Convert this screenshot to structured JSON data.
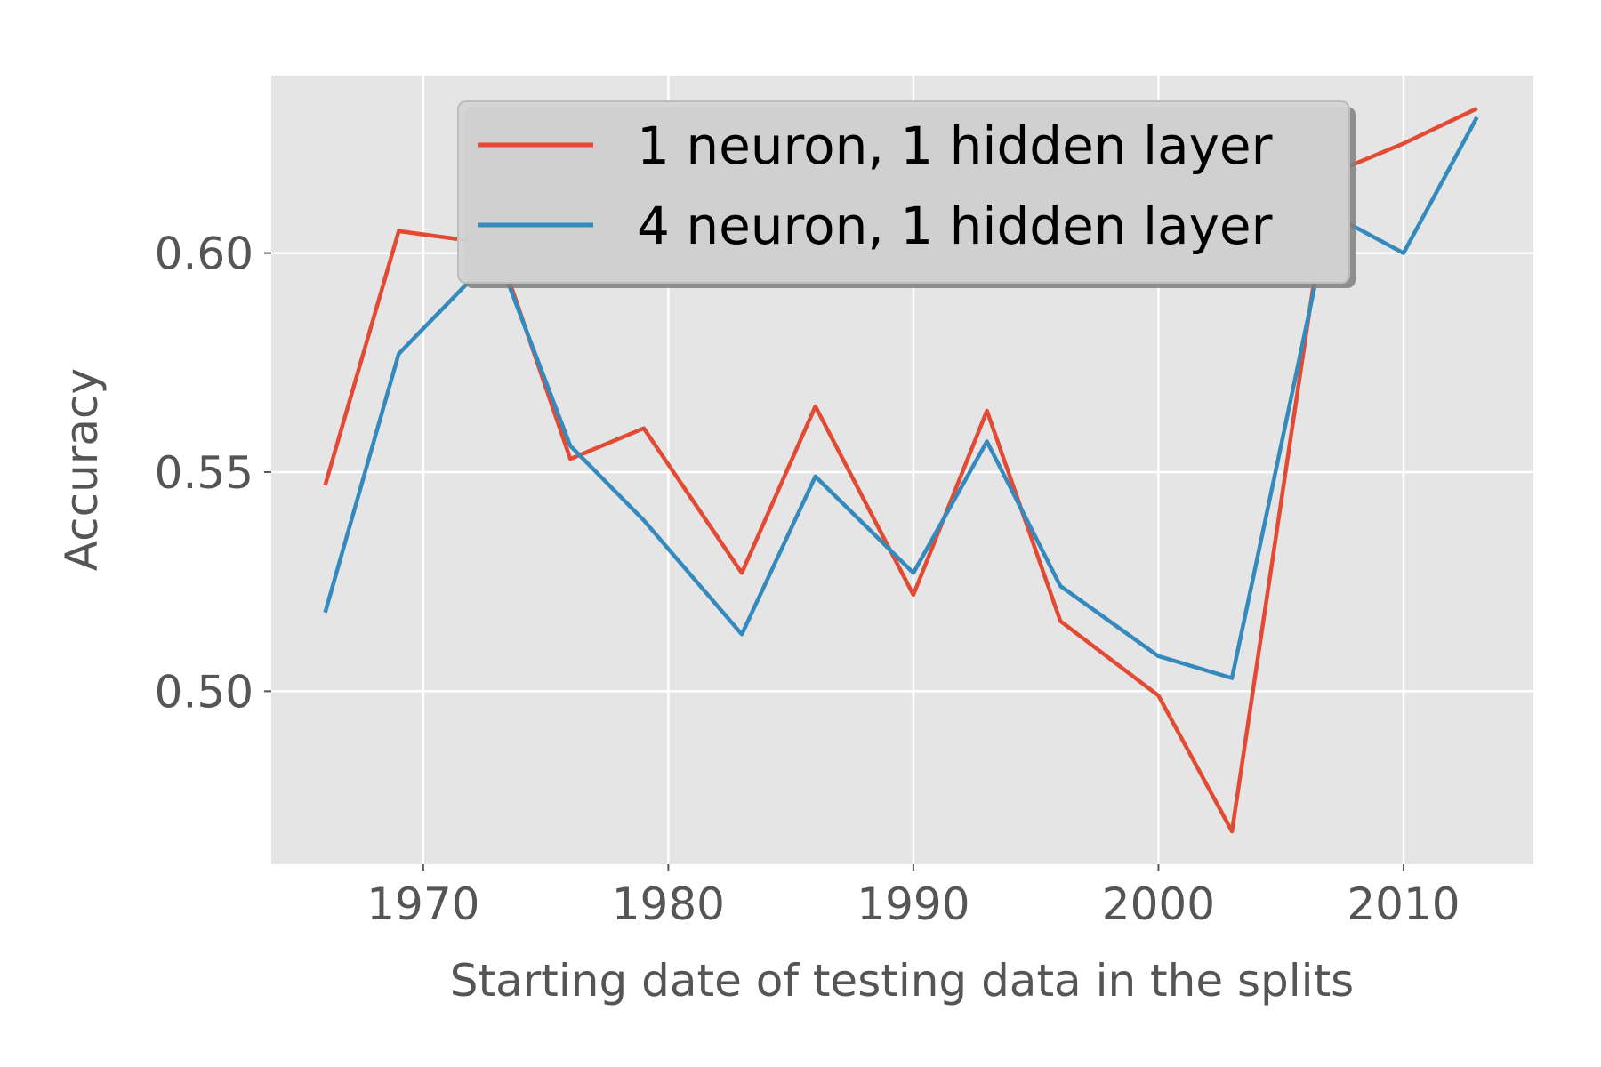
{
  "chart_data": {
    "type": "line",
    "title": "",
    "xlabel": "Starting date of testing data in the splits",
    "ylabel": "Accuracy",
    "xlim": [
      1963.8,
      2015.3
    ],
    "ylim": [
      0.4605,
      0.6405
    ],
    "xticks": [
      1970,
      1980,
      1990,
      2000,
      2010
    ],
    "xtick_labels": [
      "1970",
      "1980",
      "1990",
      "2000",
      "2010"
    ],
    "yticks": [
      0.5,
      0.55,
      0.6
    ],
    "ytick_labels": [
      "0.50",
      "0.55",
      "0.60"
    ],
    "grid": true,
    "legend_position": "top-center",
    "series": [
      {
        "name": "1 neuron, 1 hidden layer",
        "color": "#E24A33",
        "x": [
          1966,
          1969,
          1973,
          1976,
          1979,
          1983,
          1986,
          1990,
          1993,
          1996,
          2000,
          2003,
          2007,
          2010,
          2013
        ],
        "y": [
          0.547,
          0.605,
          0.602,
          0.553,
          0.56,
          0.527,
          0.565,
          0.522,
          0.564,
          0.516,
          0.499,
          0.468,
          0.618,
          0.625,
          0.633
        ]
      },
      {
        "name": "4 neuron, 1 hidden layer",
        "color": "#348ABD",
        "x": [
          1966,
          1969,
          1973,
          1976,
          1979,
          1983,
          1986,
          1990,
          1993,
          1996,
          2000,
          2003,
          2007,
          2010,
          2013
        ],
        "y": [
          0.518,
          0.577,
          0.6,
          0.556,
          0.539,
          0.513,
          0.549,
          0.527,
          0.557,
          0.524,
          0.508,
          0.503,
          0.609,
          0.6,
          0.631
        ]
      }
    ]
  }
}
